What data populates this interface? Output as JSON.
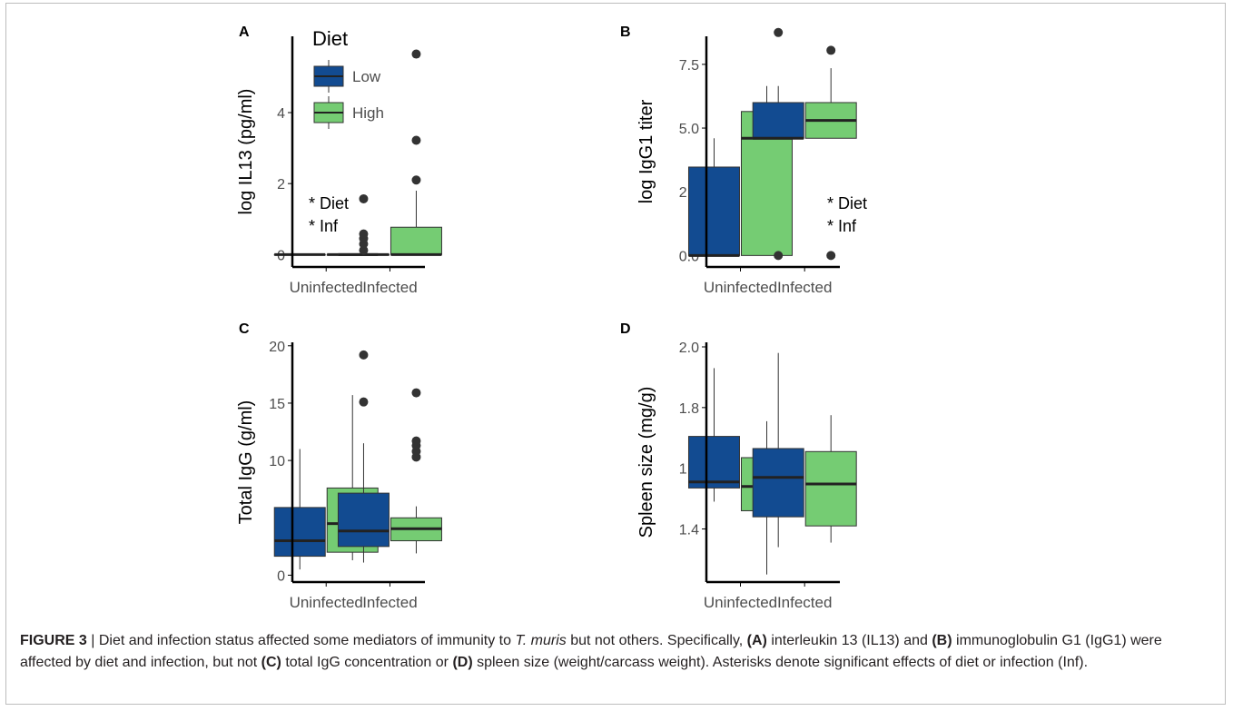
{
  "colors": {
    "low": "#124b91",
    "high": "#75cc73",
    "axis": "#000000",
    "median": "#222222",
    "outlier": "#333333",
    "text": "#4d4d4d"
  },
  "legend": {
    "title": "Diet",
    "items": [
      "Low",
      "High"
    ]
  },
  "chart_data": [
    {
      "panel": "A",
      "type": "box",
      "ylabel": "log IL13 (pg/ml)",
      "categories": [
        "Uninfected",
        "Infected"
      ],
      "ylim": [
        -0.35,
        6.15
      ],
      "yticks": [
        0,
        2,
        4
      ],
      "annotation": [
        "* Diet",
        "* Inf"
      ],
      "annotation_pos": "left",
      "series": [
        {
          "name": "Low",
          "boxes": [
            {
              "min": 0,
              "q1": 0,
              "median": 0,
              "q3": 0,
              "max": 0,
              "outliers": []
            },
            {
              "min": 0,
              "q1": 0,
              "median": 0,
              "q3": 0,
              "max": 0,
              "outliers": [
                0.12,
                0.3,
                0.45,
                0.58,
                1.57
              ]
            }
          ]
        },
        {
          "name": "High",
          "boxes": [
            {
              "min": 0,
              "q1": 0,
              "median": 0,
              "q3": 0,
              "max": 0,
              "outliers": []
            },
            {
              "min": 0,
              "q1": 0,
              "median": 0,
              "q3": 0.77,
              "max": 1.8,
              "outliers": [
                2.1,
                3.22,
                5.65
              ]
            }
          ]
        }
      ]
    },
    {
      "panel": "B",
      "type": "box",
      "ylabel": "log IgG1 titer",
      "categories": [
        "Uninfected",
        "Infected"
      ],
      "ylim": [
        -0.45,
        8.6
      ],
      "yticks": [
        0,
        2.5,
        5,
        7.5
      ],
      "yticklabels": [
        "0.0",
        "2.5",
        "5.0",
        "7.5"
      ],
      "annotation": [
        "* Diet",
        "* Inf"
      ],
      "annotation_pos": "right",
      "series": [
        {
          "name": "Low",
          "boxes": [
            {
              "min": 0,
              "q1": 0,
              "median": 0,
              "q3": 3.47,
              "max": 4.6,
              "outliers": []
            },
            {
              "min": 4.6,
              "q1": 4.6,
              "median": 4.6,
              "q3": 6.0,
              "max": 6.65,
              "outliers": [
                0,
                8.75
              ]
            }
          ]
        },
        {
          "name": "High",
          "boxes": [
            {
              "min": 0,
              "q1": 0,
              "median": 4.6,
              "q3": 5.65,
              "max": 6.65,
              "outliers": []
            },
            {
              "min": 4.6,
              "q1": 4.6,
              "median": 5.3,
              "q3": 6.0,
              "max": 7.35,
              "outliers": [
                0,
                8.05
              ]
            }
          ]
        }
      ]
    },
    {
      "panel": "C",
      "type": "box",
      "ylabel": "Total IgG (g/ml)",
      "categories": [
        "Uninfected",
        "Infected"
      ],
      "ylim": [
        -0.6,
        20.3
      ],
      "yticks": [
        0,
        5,
        10,
        15,
        20
      ],
      "series": [
        {
          "name": "Low",
          "boxes": [
            {
              "min": 0.5,
              "q1": 1.65,
              "median": 3.0,
              "q3": 5.9,
              "max": 11.0,
              "outliers": []
            },
            {
              "min": 1.1,
              "q1": 2.5,
              "median": 3.85,
              "q3": 7.15,
              "max": 11.5,
              "outliers": [
                15.1,
                19.2
              ]
            }
          ]
        },
        {
          "name": "High",
          "boxes": [
            {
              "min": 1.3,
              "q1": 2.0,
              "median": 4.5,
              "q3": 7.6,
              "max": 15.7,
              "outliers": []
            },
            {
              "min": 1.9,
              "q1": 3.0,
              "median": 4.05,
              "q3": 5.0,
              "max": 6.0,
              "outliers": [
                10.3,
                10.8,
                11.3,
                11.7,
                15.9
              ]
            }
          ]
        }
      ]
    },
    {
      "panel": "D",
      "type": "box",
      "ylabel": "Spleen size (mg/g)",
      "categories": [
        "Uninfected",
        "Infected"
      ],
      "ylim": [
        1.225,
        2.015
      ],
      "yticks": [
        1.4,
        1.6,
        1.8,
        2.0
      ],
      "yticklabels": [
        "1.4",
        "1.6",
        "1.8",
        "2.0"
      ],
      "series": [
        {
          "name": "Low",
          "boxes": [
            {
              "min": 1.49,
              "q1": 1.535,
              "median": 1.555,
              "q3": 1.705,
              "max": 1.93,
              "outliers": []
            },
            {
              "min": 1.34,
              "q1": 1.44,
              "median": 1.57,
              "q3": 1.665,
              "max": 1.98,
              "outliers": []
            }
          ]
        },
        {
          "name": "High",
          "boxes": [
            {
              "min": 1.25,
              "q1": 1.46,
              "median": 1.54,
              "q3": 1.635,
              "max": 1.755,
              "outliers": []
            },
            {
              "min": 1.355,
              "q1": 1.41,
              "median": 1.548,
              "q3": 1.655,
              "max": 1.775,
              "outliers": []
            }
          ]
        }
      ]
    }
  ],
  "caption": {
    "label": "FIGURE 3",
    "sep": " | ",
    "t1": "Diet and infection status affected some mediators of immunity to ",
    "species": "T. muris",
    "t2": " but not others. Specifically, ",
    "refA": "(A)",
    "t3": " interleukin 13 (IL13) and ",
    "refB": "(B)",
    "t4": " immunoglobulin G1 (IgG1) were affected by diet and infection, but not ",
    "refC": "(C)",
    "t5": " total IgG concentration or ",
    "refD": "(D)",
    "t6": " spleen size (weight/carcass weight). Asterisks denote significant effects of diet or infection (Inf)."
  }
}
